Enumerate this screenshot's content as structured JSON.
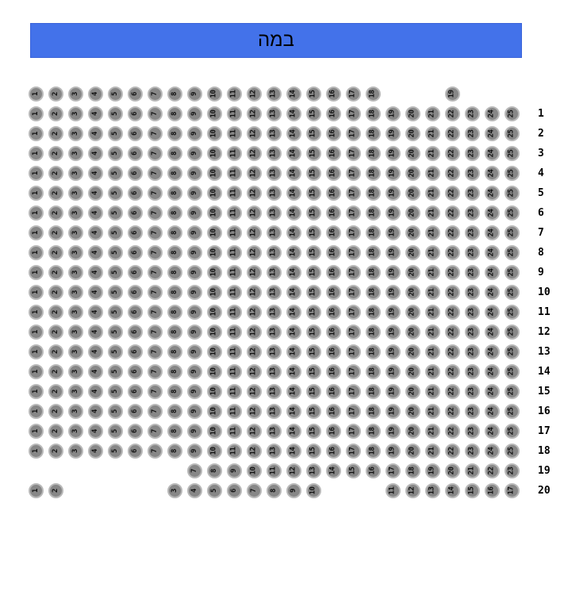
{
  "stage": {
    "label": "במה"
  },
  "colors": {
    "stage_bg": "#4372ea",
    "stage_border": "#3a63d9",
    "stage_text": "#000000",
    "seat_fill": "#878787",
    "seat_ring": "#b9b9b9",
    "seat_number": "#111111",
    "row_label": "#000000",
    "page_bg": "#ffffff"
  },
  "seatmap": {
    "rows": [
      {
        "label": "",
        "segments": [
          {
            "from": 1,
            "to": 18,
            "startCol": 1
          },
          {
            "from": 19,
            "to": 19,
            "startCol": 22
          }
        ]
      },
      {
        "label": "1",
        "segments": [
          {
            "from": 1,
            "to": 25,
            "startCol": 1
          }
        ]
      },
      {
        "label": "2",
        "segments": [
          {
            "from": 1,
            "to": 25,
            "startCol": 1
          }
        ]
      },
      {
        "label": "3",
        "segments": [
          {
            "from": 1,
            "to": 25,
            "startCol": 1
          }
        ]
      },
      {
        "label": "4",
        "segments": [
          {
            "from": 1,
            "to": 25,
            "startCol": 1
          }
        ]
      },
      {
        "label": "5",
        "segments": [
          {
            "from": 1,
            "to": 25,
            "startCol": 1
          }
        ]
      },
      {
        "label": "6",
        "segments": [
          {
            "from": 1,
            "to": 25,
            "startCol": 1
          }
        ]
      },
      {
        "label": "7",
        "segments": [
          {
            "from": 1,
            "to": 25,
            "startCol": 1
          }
        ]
      },
      {
        "label": "8",
        "segments": [
          {
            "from": 1,
            "to": 25,
            "startCol": 1
          }
        ]
      },
      {
        "label": "9",
        "segments": [
          {
            "from": 1,
            "to": 25,
            "startCol": 1
          }
        ]
      },
      {
        "label": "10",
        "segments": [
          {
            "from": 1,
            "to": 25,
            "startCol": 1
          }
        ]
      },
      {
        "label": "11",
        "segments": [
          {
            "from": 1,
            "to": 25,
            "startCol": 1
          }
        ]
      },
      {
        "label": "12",
        "segments": [
          {
            "from": 1,
            "to": 25,
            "startCol": 1
          }
        ]
      },
      {
        "label": "13",
        "segments": [
          {
            "from": 1,
            "to": 25,
            "startCol": 1
          }
        ]
      },
      {
        "label": "14",
        "segments": [
          {
            "from": 1,
            "to": 25,
            "startCol": 1
          }
        ]
      },
      {
        "label": "15",
        "segments": [
          {
            "from": 1,
            "to": 25,
            "startCol": 1
          }
        ]
      },
      {
        "label": "16",
        "segments": [
          {
            "from": 1,
            "to": 25,
            "startCol": 1
          }
        ]
      },
      {
        "label": "17",
        "segments": [
          {
            "from": 1,
            "to": 25,
            "startCol": 1
          }
        ]
      },
      {
        "label": "18",
        "segments": [
          {
            "from": 1,
            "to": 25,
            "startCol": 1
          }
        ]
      },
      {
        "label": "19",
        "segments": [
          {
            "from": 7,
            "to": 23,
            "startCol": 9
          }
        ]
      },
      {
        "label": "20",
        "segments": [
          {
            "from": 1,
            "to": 2,
            "startCol": 1
          },
          {
            "from": 3,
            "to": 10,
            "startCol": 8
          },
          {
            "from": 11,
            "to": 17,
            "startCol": 19
          }
        ]
      }
    ]
  }
}
